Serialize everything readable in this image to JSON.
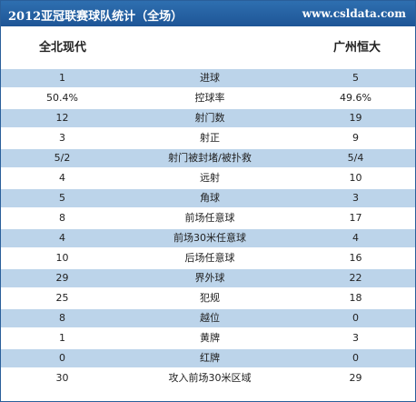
{
  "header": {
    "title": "2012亚冠联赛球队统计（全场）",
    "site": "www.csldata.com"
  },
  "teams": {
    "home": "全北现代",
    "away": "广州恒大"
  },
  "stats": [
    {
      "home": "1",
      "label": "进球",
      "away": "5"
    },
    {
      "home": "50.4%",
      "label": "控球率",
      "away": "49.6%"
    },
    {
      "home": "12",
      "label": "射门数",
      "away": "19"
    },
    {
      "home": "3",
      "label": "射正",
      "away": "9"
    },
    {
      "home": "5/2",
      "label": "射门被封堵/被扑救",
      "away": "5/4"
    },
    {
      "home": "4",
      "label": "远射",
      "away": "10"
    },
    {
      "home": "5",
      "label": "角球",
      "away": "3"
    },
    {
      "home": "8",
      "label": "前场任意球",
      "away": "17"
    },
    {
      "home": "4",
      "label": "前场30米任意球",
      "away": "4"
    },
    {
      "home": "10",
      "label": "后场任意球",
      "away": "16"
    },
    {
      "home": "29",
      "label": "界外球",
      "away": "22"
    },
    {
      "home": "25",
      "label": "犯规",
      "away": "18"
    },
    {
      "home": "8",
      "label": "越位",
      "away": "0"
    },
    {
      "home": "1",
      "label": "黄牌",
      "away": "3"
    },
    {
      "home": "0",
      "label": "红牌",
      "away": "0"
    },
    {
      "home": "30",
      "label": "攻入前场30米区域",
      "away": "29"
    }
  ],
  "colors": {
    "header_bg": "#1e5596",
    "row_highlight": "#bcd4ea",
    "border": "#2a5f9a"
  }
}
